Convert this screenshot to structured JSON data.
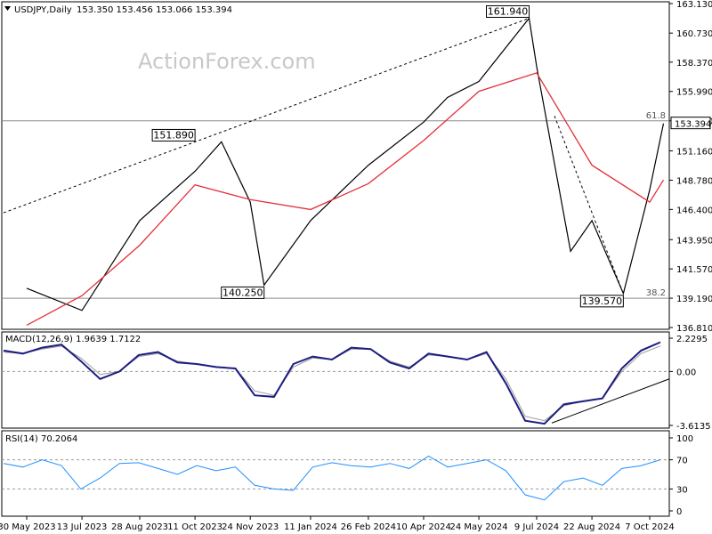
{
  "header": {
    "symbol": "USDJPY,Daily",
    "ohlc": "153.350 153.456 153.066 153.394"
  },
  "watermark": "ActionForex.com",
  "chart_data": [
    {
      "type": "line",
      "panel": "price",
      "ylim": [
        136.81,
        163.13
      ],
      "y_ticks": [
        "163.130",
        "160.730",
        "158.370",
        "155.990",
        "153.610",
        "151.160",
        "148.780",
        "146.400",
        "143.950",
        "141.570",
        "139.190",
        "136.810"
      ],
      "last_price_label": "153.394",
      "x_ticks": [
        "30 May 2023",
        "13 Jul 2023",
        "28 Aug 2023",
        "11 Oct 2023",
        "24 Nov 2023",
        "11 Jan 2024",
        "26 Feb 2024",
        "10 Apr 2024",
        "24 May 2024",
        "9 Jul 2024",
        "22 Aug 2024",
        "7 Oct 2024"
      ],
      "series": [
        {
          "legend": "",
          "color": "#000000",
          "x": [
            "30 May 2023",
            "13 Jul 2023",
            "28 Aug 2023",
            "11 Oct 2023",
            "1 Nov 2023",
            "24 Nov 2023",
            "5 Dec 2023",
            "11 Jan 2024",
            "26 Feb 2024",
            "10 Apr 2024",
            "29 Apr 2024",
            "24 May 2024",
            "3 Jul 2024",
            "9 Jul 2024",
            "5 Aug 2024",
            "22 Aug 2024",
            "16 Sep 2024",
            "7 Oct 2024",
            "18 Oct 2024"
          ],
          "values": [
            140.0,
            138.2,
            145.5,
            149.5,
            151.9,
            147.0,
            140.25,
            145.5,
            150.0,
            153.5,
            155.5,
            156.8,
            161.94,
            158.0,
            143.0,
            145.5,
            139.57,
            148.0,
            153.39
          ]
        },
        {
          "legend": "",
          "color": "#e4303a",
          "x": [
            "30 May 2023",
            "13 Jul 2023",
            "28 Aug 2023",
            "11 Oct 2023",
            "24 Nov 2023",
            "11 Jan 2024",
            "26 Feb 2024",
            "10 Apr 2024",
            "24 May 2024",
            "9 Jul 2024",
            "22 Aug 2024",
            "7 Oct 2024",
            "18 Oct 2024"
          ],
          "values": [
            137.0,
            139.4,
            143.5,
            148.4,
            147.2,
            146.4,
            148.5,
            152.0,
            156.0,
            157.5,
            150.0,
            147.0,
            148.8
          ]
        }
      ],
      "levels": [
        {
          "label": "61.8",
          "value": 153.6
        },
        {
          "label": "38.2",
          "value": 139.19
        }
      ],
      "annotations": [
        {
          "label": "151.890",
          "x": "11 Oct 2023",
          "y": 151.89
        },
        {
          "label": "140.250",
          "x": "5 Dec 2023",
          "y": 140.25
        },
        {
          "label": "161.940",
          "x": "3 Jul 2024",
          "y": 161.94
        },
        {
          "label": "139.570",
          "x": "16 Sep 2024",
          "y": 139.57
        }
      ]
    },
    {
      "type": "line",
      "panel": "macd",
      "title": "MACD(12,26,9) 1.9639 1.7122",
      "ylim": [
        -3.6135,
        2.2295
      ],
      "y_ticks": [
        "2.2295",
        "0.00",
        "-3.6135"
      ],
      "series": [
        {
          "legend": "",
          "color": "#1c1c80",
          "values": [
            1.4,
            1.2,
            1.6,
            1.8,
            0.7,
            -0.5,
            0.0,
            1.1,
            1.3,
            0.6,
            0.5,
            0.3,
            0.2,
            -1.6,
            -1.7,
            0.5,
            1.0,
            0.8,
            1.6,
            1.5,
            0.6,
            0.2,
            1.2,
            1.0,
            0.8,
            1.3,
            -0.8,
            -3.3,
            -3.5,
            -2.2,
            -2.0,
            -1.8,
            0.2,
            1.4,
            1.96
          ]
        },
        {
          "legend": "",
          "color": "#9a9a9a",
          "values": [
            1.3,
            1.2,
            1.5,
            1.7,
            0.9,
            -0.2,
            0.0,
            1.0,
            1.2,
            0.7,
            0.5,
            0.3,
            0.2,
            -1.3,
            -1.6,
            0.3,
            0.9,
            0.8,
            1.5,
            1.5,
            0.7,
            0.3,
            1.1,
            1.0,
            0.8,
            1.2,
            -0.5,
            -3.0,
            -3.3,
            -2.3,
            -2.0,
            -1.8,
            0.0,
            1.2,
            1.71
          ]
        }
      ]
    },
    {
      "type": "line",
      "panel": "rsi",
      "title": "RSI(14) 70.2064",
      "ylim": [
        0,
        100
      ],
      "y_ticks": [
        "100",
        "70",
        "30",
        "0"
      ],
      "series": [
        {
          "legend": "",
          "color": "#1e90ff",
          "values": [
            65,
            60,
            70,
            62,
            30,
            45,
            65,
            66,
            58,
            50,
            62,
            55,
            60,
            35,
            30,
            28,
            60,
            66,
            62,
            60,
            65,
            58,
            75,
            60,
            65,
            70,
            55,
            22,
            15,
            40,
            45,
            35,
            58,
            62,
            70
          ]
        }
      ]
    }
  ]
}
